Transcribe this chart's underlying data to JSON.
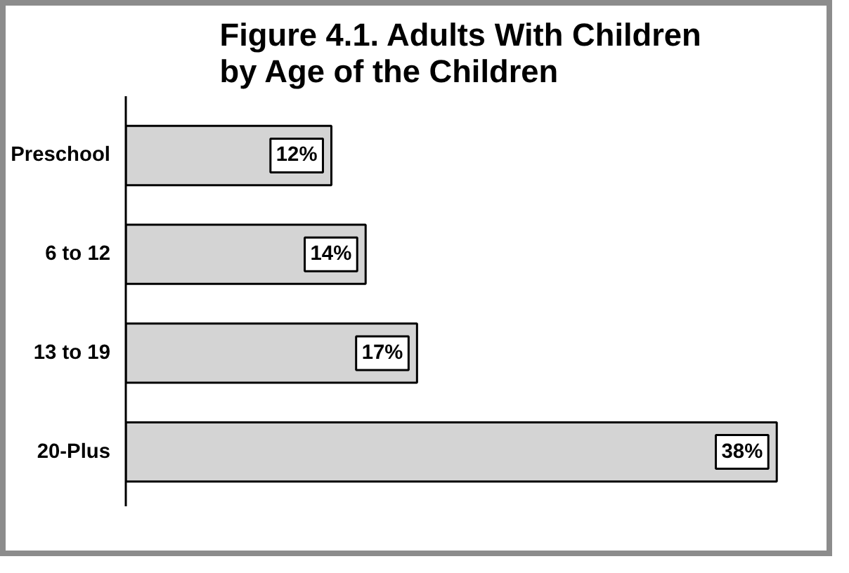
{
  "chart_data": {
    "type": "bar",
    "orientation": "horizontal",
    "title": "Figure 4.1. Adults With Children by Age of the Children",
    "categories": [
      "Preschool",
      "6 to 12",
      "13 to 19",
      "20-Plus"
    ],
    "values": [
      12,
      14,
      17,
      38
    ],
    "color": "#d4d4d4",
    "data_labels": true,
    "value_labels": [
      "12%",
      "14%",
      "17%",
      "38%"
    ],
    "grid": false
  }
}
